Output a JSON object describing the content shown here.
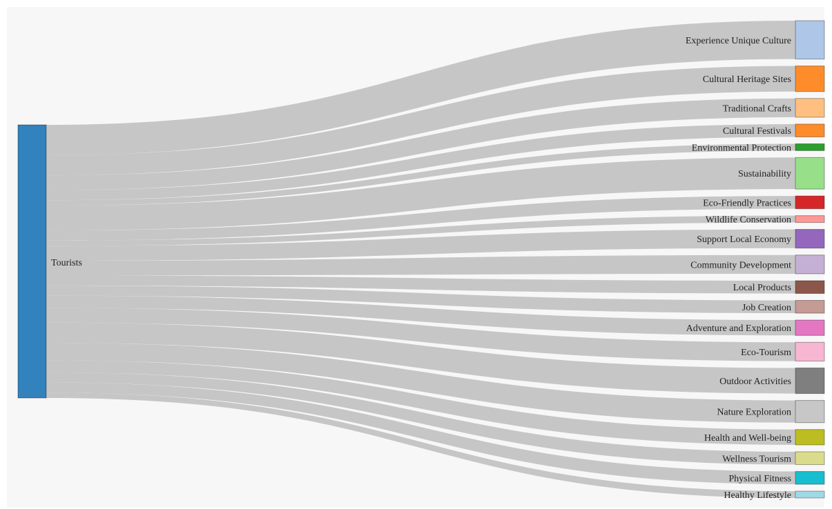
{
  "chart_data": {
    "type": "sankey",
    "source": {
      "name": "Tourists",
      "color": "#3182bd"
    },
    "link_color": "#c6c6c6",
    "targets": [
      {
        "name": "Experience Unique Culture",
        "value": 45,
        "color": "#aec7e8"
      },
      {
        "name": "Cultural Heritage Sites",
        "value": 30,
        "color": "#ff8c2a"
      },
      {
        "name": "Traditional Crafts",
        "value": 22,
        "color": "#ffbf80"
      },
      {
        "name": "Cultural Festivals",
        "value": 15,
        "color": "#ff8c2a"
      },
      {
        "name": "Environmental Protection",
        "value": 8,
        "color": "#2ca02c"
      },
      {
        "name": "Sustainability",
        "value": 37,
        "color": "#98df8a"
      },
      {
        "name": "Eco-Friendly Practices",
        "value": 15,
        "color": "#d62728"
      },
      {
        "name": "Wildlife Conservation",
        "value": 8,
        "color": "#ff9896"
      },
      {
        "name": "Support Local Economy",
        "value": 22,
        "color": "#9467bd"
      },
      {
        "name": "Community Development",
        "value": 22,
        "color": "#c5b0d5"
      },
      {
        "name": "Local Products",
        "value": 15,
        "color": "#8c564b"
      },
      {
        "name": "Job Creation",
        "value": 15,
        "color": "#c49c94"
      },
      {
        "name": "Adventure and Exploration",
        "value": 18,
        "color": "#e377c2"
      },
      {
        "name": "Eco-Tourism",
        "value": 22,
        "color": "#f7b6d2"
      },
      {
        "name": "Outdoor Activities",
        "value": 30,
        "color": "#7f7f7f"
      },
      {
        "name": "Nature Exploration",
        "value": 26,
        "color": "#c7c7c7"
      },
      {
        "name": "Health and Well-being",
        "value": 18,
        "color": "#bcbd22"
      },
      {
        "name": "Wellness Tourism",
        "value": 15,
        "color": "#dbdb8d"
      },
      {
        "name": "Physical Fitness",
        "value": 15,
        "color": "#17becf"
      },
      {
        "name": "Healthy Lifestyle",
        "value": 8,
        "color": "#9edae5"
      }
    ]
  }
}
